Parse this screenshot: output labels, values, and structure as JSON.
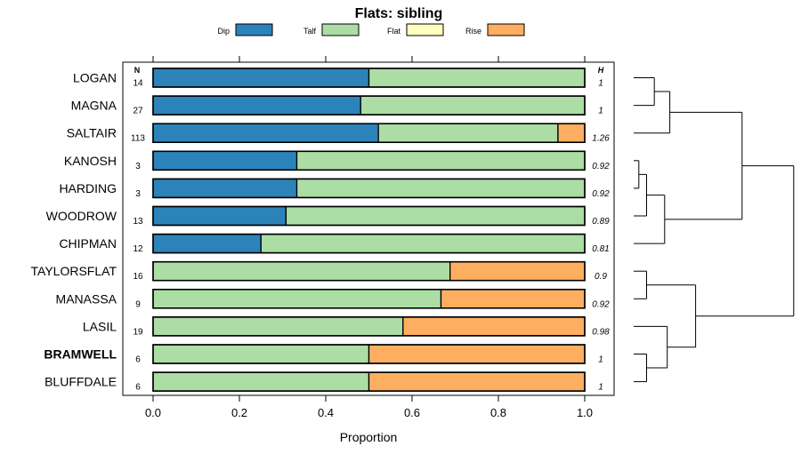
{
  "chart_data": {
    "type": "bar",
    "stacked": true,
    "orientation": "horizontal",
    "title": "Flats: sibling",
    "xlabel": "Proportion",
    "xlim": [
      0,
      1
    ],
    "xticks": [
      "0.0",
      "0.2",
      "0.4",
      "0.6",
      "0.8",
      "1.0"
    ],
    "xtick_values": [
      0,
      0.2,
      0.4,
      0.6,
      0.8,
      1.0
    ],
    "n_header": "N",
    "h_header": "H",
    "legend_position": "top",
    "legend": [
      {
        "name": "Dip",
        "color": "#2b83ba"
      },
      {
        "name": "Talf",
        "color": "#abdda4"
      },
      {
        "name": "Flat",
        "color": "#ffffbf"
      },
      {
        "name": "Rise",
        "color": "#fdae61"
      }
    ],
    "categories": [
      "LOGAN",
      "MAGNA",
      "SALTAIR",
      "KANOSH",
      "HARDING",
      "WOODROW",
      "CHIPMAN",
      "TAYLORSFLAT",
      "MANASSA",
      "LASIL",
      "BRAMWELL",
      "BLUFFDALE"
    ],
    "bold_categories": [
      "BRAMWELL"
    ],
    "n": [
      "14",
      "27",
      "113",
      "3",
      "3",
      "13",
      "12",
      "16",
      "9",
      "19",
      "6",
      "6"
    ],
    "h": [
      "1",
      "1",
      "1.26",
      "0.92",
      "0.92",
      "0.89",
      "0.81",
      "0.9",
      "0.92",
      "0.98",
      "1",
      "1"
    ],
    "series": [
      {
        "name": "Dip",
        "values": [
          0.5,
          0.481,
          0.522,
          0.333,
          0.333,
          0.308,
          0.25,
          0,
          0,
          0,
          0,
          0
        ]
      },
      {
        "name": "Talf",
        "values": [
          0.5,
          0.519,
          0.416,
          0.667,
          0.667,
          0.692,
          0.75,
          0.688,
          0.667,
          0.579,
          0.5,
          0.5
        ]
      },
      {
        "name": "Flat",
        "values": [
          0,
          0,
          0,
          0,
          0,
          0,
          0,
          0,
          0,
          0,
          0,
          0
        ]
      },
      {
        "name": "Rise",
        "values": [
          0,
          0,
          0.062,
          0,
          0,
          0,
          0,
          0.312,
          0.333,
          0.421,
          0.5,
          0.5
        ]
      }
    ],
    "dendrogram": {
      "leaves_in_order": true,
      "merges": [
        {
          "a": 0,
          "b": 1,
          "height": 0.08
        },
        {
          "a": 3,
          "b": 4,
          "height": 0.02
        },
        {
          "a": "m1",
          "b": 5,
          "height": 0.05
        },
        {
          "a": "m2",
          "b": 6,
          "height": 0.12
        },
        {
          "a": "m0",
          "b": 2,
          "height": 0.14
        },
        {
          "a": "m4",
          "b": "m3",
          "height": 0.42
        },
        {
          "a": 7,
          "b": 8,
          "height": 0.05
        },
        {
          "a": 10,
          "b": 11,
          "height": 0.05
        },
        {
          "a": 9,
          "b": "m7",
          "height": 0.13
        },
        {
          "a": "m6",
          "b": "m8",
          "height": 0.24
        },
        {
          "a": "m5",
          "b": "m9",
          "height": 0.62
        }
      ]
    }
  }
}
